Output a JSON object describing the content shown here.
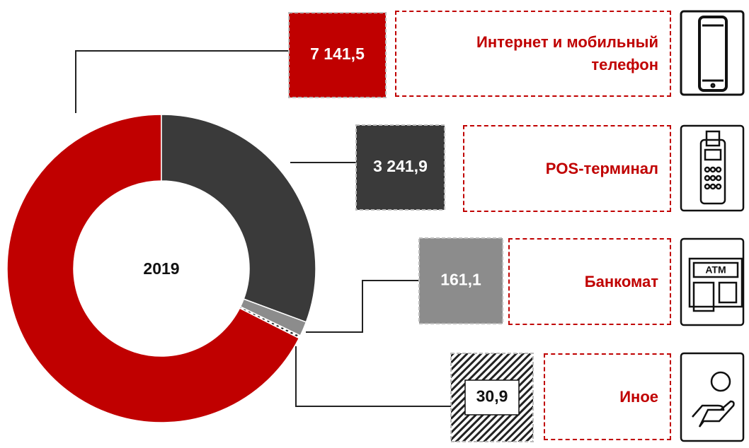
{
  "chart_data": {
    "type": "pie",
    "donut": true,
    "title": "2019",
    "categories": [
      "Интернет и мобильный телефон",
      "POS-терминал",
      "Банкомат",
      "Иное"
    ],
    "values": [
      7141.5,
      3241.9,
      161.1,
      30.9
    ],
    "value_labels": [
      "7 141,5",
      "3 241,9",
      "161,1",
      "30,9"
    ],
    "colors": [
      "#c00000",
      "#3a3a3a",
      "#8c8c8c",
      "hatch"
    ]
  }
}
